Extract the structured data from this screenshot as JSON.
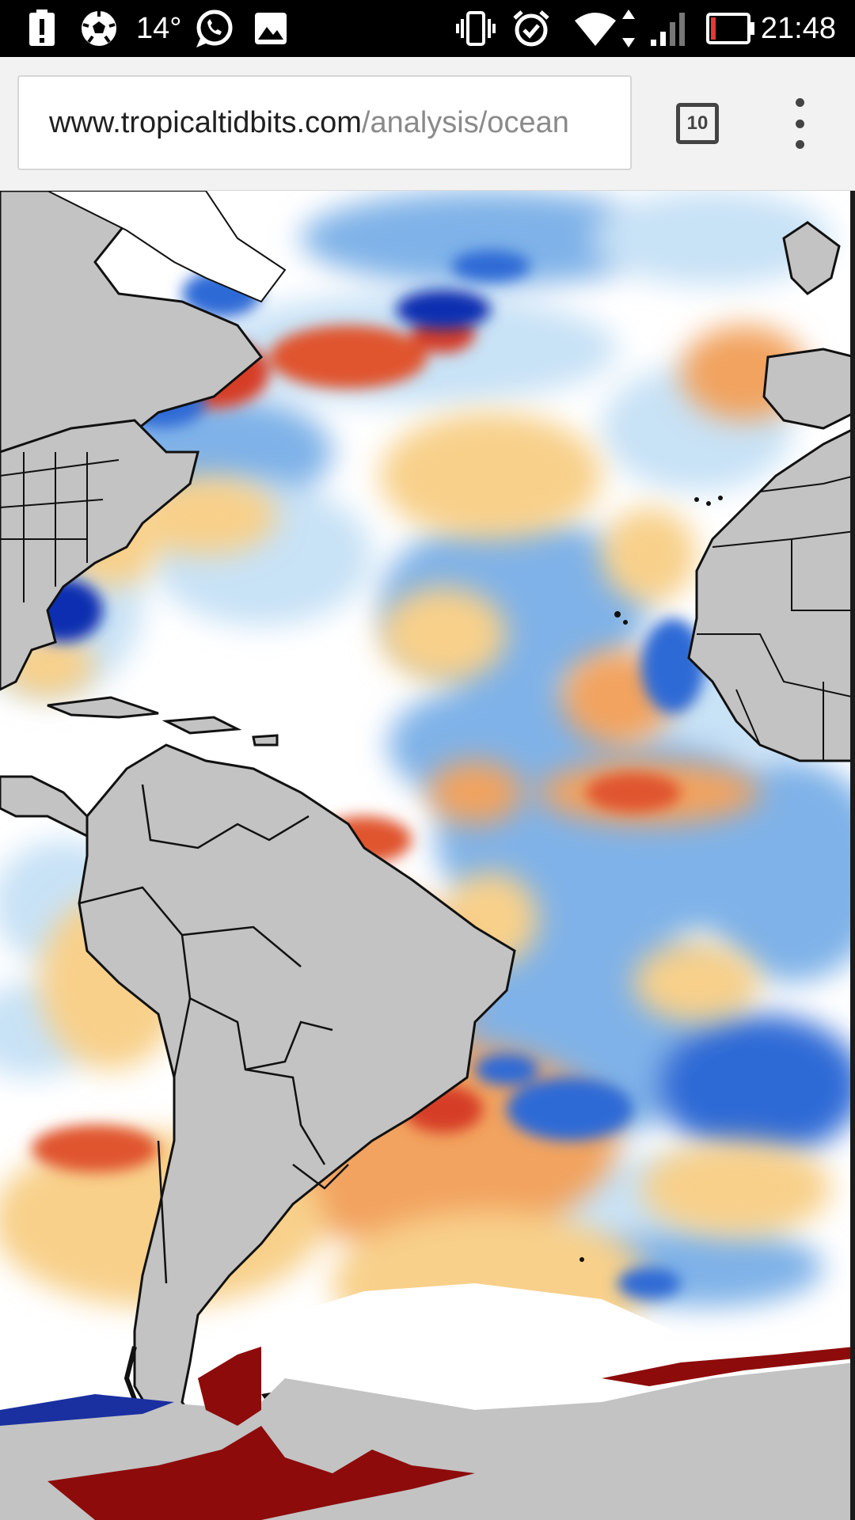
{
  "status_bar": {
    "temperature": "14°",
    "time": "21:48",
    "left_icons": [
      "alert-icon",
      "soccer-ball-icon",
      "whatsapp-icon",
      "gallery-icon"
    ],
    "right_icons": [
      "vibrate-icon",
      "alarm-icon",
      "wifi-icon",
      "signal-icon",
      "battery-icon"
    ]
  },
  "browser": {
    "url_domain": "www.tropicaltidbits.com",
    "url_path": "/analysis/ocean",
    "tab_count": "10",
    "menu_icon": "more-vert-icon"
  },
  "map": {
    "colors": {
      "land": "#c3c3c3",
      "warm_light": "#f8d08a",
      "warm": "#f2a35e",
      "hot": "#d63d25",
      "very_hot": "#8e0b0b",
      "cool_light": "#c8e2f6",
      "cool": "#7fb2e8",
      "cold": "#2f6bd6",
      "very_cold": "#0a2fb0"
    }
  }
}
